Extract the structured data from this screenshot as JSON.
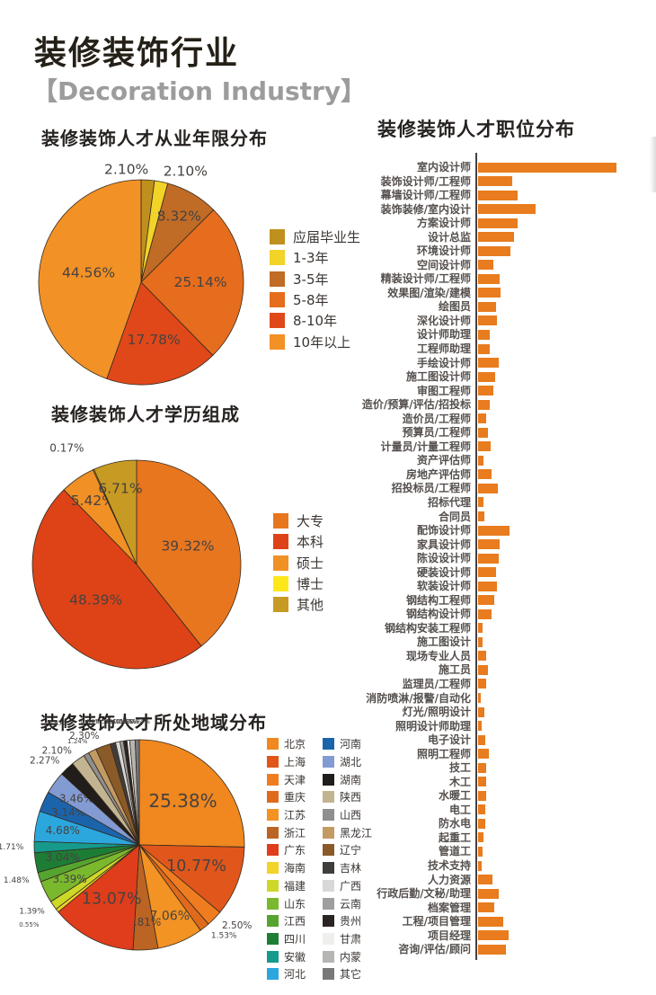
{
  "page": {
    "title": "装修装饰行业",
    "subtitle": "【Decoration Industry】"
  },
  "colors": {
    "bar": "#e87c1e",
    "axis": "#454140",
    "percent_label": "#474240",
    "title_text": "#262220",
    "subtitle_text": "#9c9c9c"
  },
  "chart_data": [
    {
      "id": "experience-pie",
      "type": "pie",
      "title": "装修装饰人才从业年限分布",
      "unit": "%",
      "legend_position": "right",
      "slices": [
        {
          "label": "应届毕业生",
          "value": 2.1,
          "color": "#c0901e"
        },
        {
          "label": "1-3年",
          "value": 2.1,
          "color": "#f2d327"
        },
        {
          "label": "3-5年",
          "value": 8.32,
          "color": "#c06b26"
        },
        {
          "label": "5-8年",
          "value": 25.14,
          "color": "#e66d1d"
        },
        {
          "label": "8-10年",
          "value": 17.78,
          "color": "#e0481a"
        },
        {
          "label": "10年以上",
          "value": 44.56,
          "color": "#f29126"
        }
      ]
    },
    {
      "id": "education-pie",
      "type": "pie",
      "title": "装修装饰人才学历组成",
      "unit": "%",
      "legend_position": "right",
      "slices": [
        {
          "label": "大专",
          "value": 39.32,
          "color": "#e8761f"
        },
        {
          "label": "本科",
          "value": 48.39,
          "color": "#dd4317"
        },
        {
          "label": "硕士",
          "value": 5.42,
          "color": "#f09025"
        },
        {
          "label": "博士",
          "value": 0.17,
          "color": "#ffe81a"
        },
        {
          "label": "其他",
          "value": 6.71,
          "color": "#c79b23"
        }
      ]
    },
    {
      "id": "region-pie",
      "type": "pie",
      "title": "装修装饰人才所处地域分布",
      "unit": "%",
      "legend_position": "right-two-columns",
      "slices": [
        {
          "label": "北京",
          "value": 25.38,
          "color": "#f0881f"
        },
        {
          "label": "上海",
          "value": 10.77,
          "color": "#e0561b"
        },
        {
          "label": "天津",
          "value": 2.5,
          "color": "#ef7d20"
        },
        {
          "label": "重庆",
          "value": 1.53,
          "color": "#e06a1c"
        },
        {
          "label": "江苏",
          "value": 7.06,
          "color": "#f29324"
        },
        {
          "label": "浙江",
          "value": 3.81,
          "color": "#bc6423"
        },
        {
          "label": "广东",
          "value": 13.07,
          "color": "#df3d1b"
        },
        {
          "label": "海南",
          "value": 0.55,
          "color": "#f2d327"
        },
        {
          "label": "福建",
          "value": 1.39,
          "color": "#cdd829"
        },
        {
          "label": "山东",
          "value": 3.39,
          "color": "#7ab82e"
        },
        {
          "label": "江西",
          "value": 1.48,
          "color": "#55a42f"
        },
        {
          "label": "四川",
          "value": 3.04,
          "color": "#1d7d35"
        },
        {
          "label": "安徽",
          "value": 1.71,
          "color": "#169a8c"
        },
        {
          "label": "河北",
          "value": 4.68,
          "color": "#2ba7de"
        },
        {
          "label": "河南",
          "value": 3.14,
          "color": "#1b64ab"
        },
        {
          "label": "湖北",
          "value": 3.46,
          "color": "#829bd3"
        },
        {
          "label": "湖南",
          "value": 2.27,
          "color": "#211d1a"
        },
        {
          "label": "陕西",
          "value": 2.1,
          "color": "#c3b491"
        },
        {
          "label": "山西",
          "value": 0.85,
          "color": "#8f8f8f"
        },
        {
          "label": "黑龙江",
          "value": 1.24,
          "color": "#c49a63"
        },
        {
          "label": "辽宁",
          "value": 2.3,
          "color": "#8a5a28"
        },
        {
          "label": "吉林",
          "value": 0.84,
          "color": "#413d3a"
        },
        {
          "label": "广西",
          "value": 0.69,
          "color": "#d8d8d8"
        },
        {
          "label": "云南",
          "value": 0.52,
          "color": "#9e9e9e"
        },
        {
          "label": "贵州",
          "value": 0.55,
          "color": "#2a2522"
        },
        {
          "label": "甘肃",
          "value": 0.41,
          "color": "#efefed"
        },
        {
          "label": "内蒙",
          "value": 0.84,
          "color": "#b5b5b3"
        },
        {
          "label": "其它",
          "value": 0.63,
          "color": "#787878"
        }
      ]
    },
    {
      "id": "positions-bar",
      "type": "bar",
      "orientation": "horizontal",
      "title": "装修装饰人才职位分布",
      "value_note": "no numeric axis shown in original; values are relative bar lengths",
      "categories": [
        "室内设计师",
        "装饰设计师/工程师",
        "幕墙设计师/工程师",
        "装饰装修/室内设计",
        "方案设计师",
        "设计总监",
        "环境设计师",
        "空间设计师",
        "精装设计师/工程师",
        "效果图/渲染/建模",
        "绘图员",
        "深化设计师",
        "设计师助理",
        "工程师助理",
        "手绘设计师",
        "施工图设计师",
        "审图工程师",
        "造价/预算/评估/招投标",
        "造价员/工程师",
        "预算员/工程师",
        "计量员/计量工程师",
        "资产评估师",
        "房地产评估师",
        "招投标员/工程师",
        "招标代理",
        "合同员",
        "配饰设计师",
        "家具设计师",
        "陈设设计师",
        "硬装设计师",
        "软装设计师",
        "钢结构工程师",
        "钢结构设计师",
        "钢结构安装工程师",
        "施工图设计",
        "现场专业人员",
        "施工员",
        "监理员/工程师",
        "消防喷淋/报警/自动化",
        "灯光/照明设计",
        "照明设计师助理",
        "电子设计",
        "照明工程师",
        "技工",
        "木工",
        "水暖工",
        "电工",
        "防水电",
        "起重工",
        "管道工",
        "技术支持",
        "人力资源",
        "行政后勤/文秘/助理",
        "档案管理",
        "工程/项目管理",
        "项目经理",
        "咨询/评估/顾问"
      ],
      "values": [
        154,
        38,
        44,
        64,
        44,
        40,
        36,
        17,
        24,
        25,
        20,
        21,
        13,
        13,
        23,
        19,
        17,
        13,
        9,
        11,
        14,
        6,
        15,
        22,
        6,
        7,
        35,
        24,
        23,
        20,
        21,
        18,
        15,
        5,
        5,
        9,
        11,
        9,
        3,
        7,
        4,
        8,
        12,
        9,
        9,
        9,
        8,
        8,
        6,
        5,
        4,
        16,
        23,
        18,
        28,
        34,
        31
      ]
    }
  ]
}
